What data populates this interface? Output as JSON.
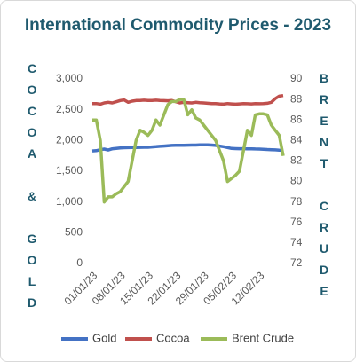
{
  "chart_data": {
    "type": "line",
    "title": "International Commodity Prices - 2023",
    "ylabel": "COCOA & GOLD",
    "y2label": "BRENT CRUDE",
    "categories": [
      "01/01/23",
      null,
      null,
      null,
      null,
      null,
      null,
      "08/01/23",
      null,
      null,
      null,
      null,
      null,
      null,
      "15/01/23",
      null,
      null,
      null,
      null,
      null,
      null,
      "22/01/23",
      null,
      null,
      null,
      null,
      null,
      null,
      "29/01/23",
      null,
      null,
      null,
      null,
      null,
      null,
      "05/02/23",
      null,
      null,
      null,
      null,
      null,
      null,
      "12/02/23",
      null,
      null,
      null,
      null,
      null,
      null
    ],
    "series": [
      {
        "name": "Gold",
        "color": "#4472c4",
        "values": [
          1830,
          1835,
          1850,
          1860,
          1845,
          1865,
          1872,
          1880,
          1882,
          1884,
          1885,
          1886,
          1888,
          1889,
          1890,
          1895,
          1900,
          1905,
          1910,
          1915,
          1920,
          1921,
          1922,
          1923,
          1924,
          1925,
          1926,
          1928,
          1929,
          1930,
          1925,
          1920,
          1910,
          1900,
          1885,
          1870,
          1868,
          1867,
          1866,
          1865,
          1865,
          1862,
          1860,
          1857,
          1854,
          1850,
          1847,
          1843,
          1840
        ]
      },
      {
        "name": "Cocoa",
        "color": "#c0504d",
        "values": [
          2600,
          2600,
          2590,
          2610,
          2620,
          2610,
          2630,
          2650,
          2660,
          2620,
          2640,
          2650,
          2650,
          2655,
          2650,
          2650,
          2655,
          2650,
          2648,
          2645,
          2650,
          2630,
          2610,
          2620,
          2615,
          2610,
          2620,
          2615,
          2610,
          2605,
          2600,
          2600,
          2595,
          2590,
          2600,
          2595,
          2590,
          2595,
          2600,
          2598,
          2595,
          2600,
          2598,
          2600,
          2605,
          2620,
          2680,
          2720,
          2730
        ]
      },
      {
        "name": "Brent Crude",
        "color": "#9bbb59",
        "axis": "y2",
        "values": [
          86,
          86,
          84,
          78,
          78.5,
          78.5,
          78.8,
          79,
          79.5,
          80,
          82,
          84,
          85,
          84.8,
          84.5,
          85,
          86,
          85.5,
          86.5,
          87.5,
          87.8,
          87.8,
          88,
          88,
          86.5,
          87,
          86.2,
          86,
          85.5,
          85,
          84.5,
          84,
          83,
          82,
          80,
          80.3,
          80.6,
          81,
          83,
          85,
          84.5,
          86.5,
          86.6,
          86.6,
          86.5,
          85.5,
          85,
          84.5,
          82.5
        ]
      }
    ],
    "ylim": [
      0,
      3000
    ],
    "yticks": [
      0,
      {
        "value": 500,
        "label": "500"
      },
      {
        "value": 1000,
        "label": "1,000"
      },
      {
        "value": 1500,
        "label": "1,500"
      },
      {
        "value": 2000,
        "label": "2,000"
      },
      {
        "value": 2500,
        "label": "2,500"
      },
      {
        "value": 3000,
        "label": "3,000"
      }
    ],
    "y2lim": [
      72,
      90
    ],
    "y2ticks": [
      72,
      74,
      76,
      78,
      80,
      82,
      84,
      86,
      88,
      90
    ],
    "legend": "bottom"
  }
}
